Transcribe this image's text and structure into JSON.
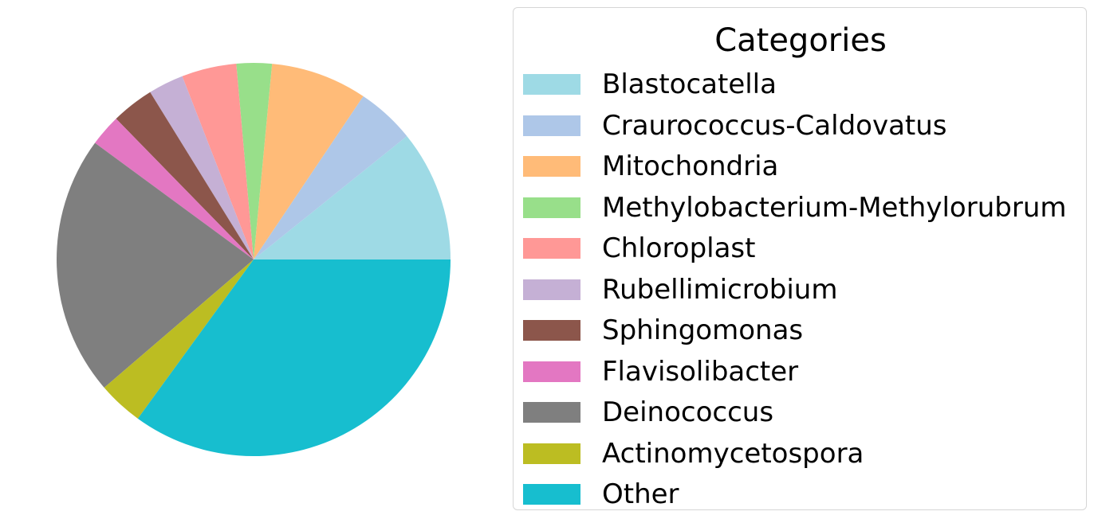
{
  "chart_data": {
    "type": "pie",
    "categories": [
      "Blastocatella",
      "Craurococcus-Caldovatus",
      "Mitochondria",
      "Methylobacterium-Methylorubrum",
      "Chloroplast",
      "Rubellimicrobium",
      "Sphingomonas",
      "Flavisolibacter",
      "Deinococcus",
      "Actinomycetospora",
      "Other"
    ],
    "values": [
      10.8,
      4.8,
      7.9,
      2.9,
      4.5,
      2.9,
      3.5,
      2.6,
      21.4,
      3.7,
      35.0
    ],
    "colors": [
      "#9edae5",
      "#aec7e8",
      "#ffbb78",
      "#98df8a",
      "#ff9896",
      "#c5b0d5",
      "#8c564b",
      "#e377c2",
      "#7f7f7f",
      "#bcbd22",
      "#17becf"
    ],
    "start_angle_deg": 0,
    "direction": "counterclockwise",
    "legend": {
      "title": "Categories",
      "placement": "right"
    }
  }
}
